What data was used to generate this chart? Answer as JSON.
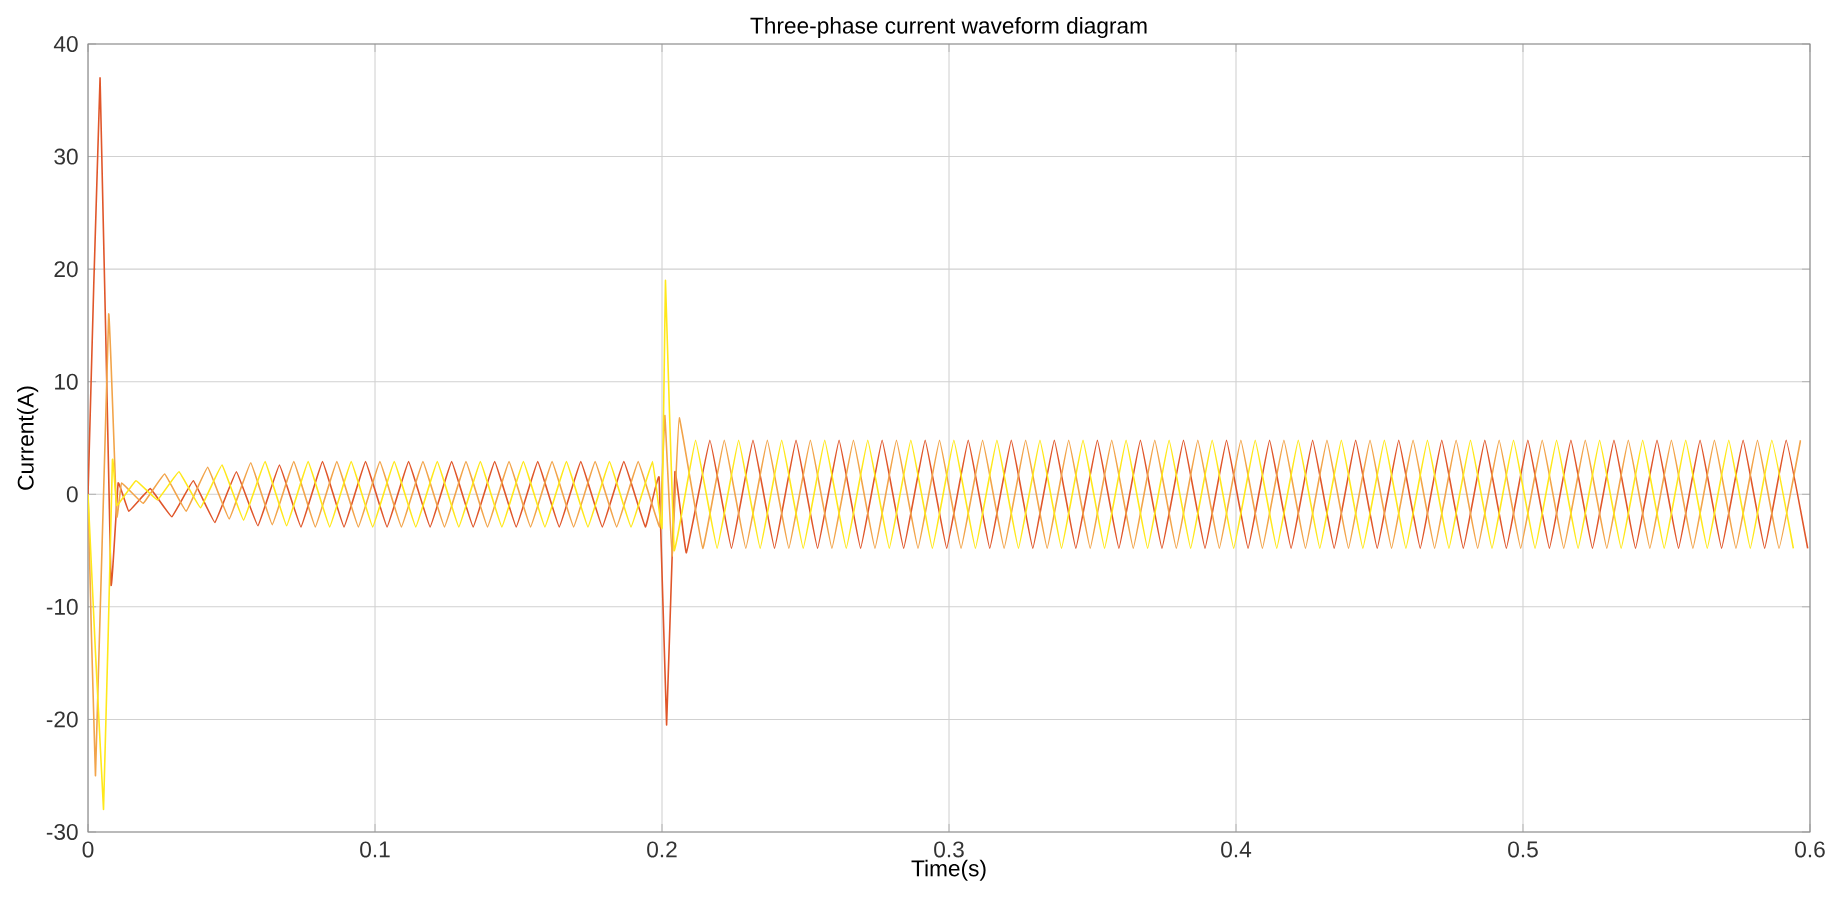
{
  "chart_data": {
    "type": "line",
    "title": "Three-phase current waveform diagram",
    "xlabel": "Time(s)",
    "ylabel": "Current(A)",
    "xlim": [
      0,
      0.6
    ],
    "ylim": [
      -30,
      40
    ],
    "xticks": [
      0,
      0.1,
      0.2,
      0.3,
      0.4,
      0.5,
      0.6
    ],
    "yticks": [
      -30,
      -20,
      -10,
      0,
      10,
      20,
      30,
      40
    ],
    "grid": true,
    "line_style": "solid",
    "series": [
      {
        "color": "#e0562a",
        "x": [
          0,
          0.0042,
          0.008,
          0.0105,
          0.0142,
          0.0217,
          0.0292,
          0.0367,
          0.0442,
          0.0517,
          0.0592,
          0.0667,
          0.0742,
          0.0817,
          0.0892,
          0.0967,
          0.1042,
          0.1117,
          0.1192,
          0.1267,
          0.1342,
          0.1417,
          0.1492,
          0.1567,
          0.1642,
          0.1717,
          0.1792,
          0.1867,
          0.1942,
          0.199,
          0.2016,
          0.2045,
          0.2085,
          0.2167,
          0.2242,
          0.2317,
          0.2392,
          0.2467,
          0.2542,
          0.2617,
          0.2692,
          0.2767,
          0.2842,
          0.2917,
          0.2992,
          0.3067,
          0.3142,
          0.3217,
          0.3292,
          0.3367,
          0.3442,
          0.3517,
          0.3592,
          0.3667,
          0.3742,
          0.3817,
          0.3892,
          0.3967,
          0.4042,
          0.4117,
          0.4192,
          0.4267,
          0.4342,
          0.4417,
          0.4492,
          0.4567,
          0.4642,
          0.4717,
          0.4792,
          0.4867,
          0.4942,
          0.5017,
          0.5092,
          0.5167,
          0.5242,
          0.5317,
          0.5392,
          0.5467,
          0.5542,
          0.5617,
          0.5692,
          0.5767,
          0.5842,
          0.5917,
          0.5992
        ],
        "values": [
          0,
          37,
          -8,
          1,
          -1.5,
          0.5,
          -2,
          1.2,
          -2.5,
          2,
          -2.8,
          2.6,
          -2.9,
          2.9,
          -2.9,
          2.9,
          -2.9,
          2.9,
          -2.9,
          2.9,
          -2.9,
          2.9,
          -2.9,
          2.9,
          -2.9,
          2.9,
          -2.9,
          2.9,
          -2.9,
          1.5,
          -20.5,
          2,
          -5.2,
          4.8,
          -4.8,
          4.8,
          -4.8,
          4.8,
          -4.8,
          4.8,
          -4.8,
          4.8,
          -4.8,
          4.8,
          -4.8,
          4.8,
          -4.8,
          4.8,
          -4.8,
          4.8,
          -4.8,
          4.8,
          -4.8,
          4.8,
          -4.8,
          4.8,
          -4.8,
          4.8,
          -4.8,
          4.8,
          -4.8,
          4.8,
          -4.8,
          4.8,
          -4.8,
          4.8,
          -4.8,
          4.8,
          -4.8,
          4.8,
          -4.8,
          4.8,
          -4.8,
          4.8,
          -4.8,
          4.8,
          -4.8,
          4.8,
          -4.8,
          4.8,
          -4.8,
          4.8,
          -4.8,
          4.8,
          -4.8
        ]
      },
      {
        "color": "#f2a44a",
        "x": [
          0,
          0.0026,
          0.0072,
          0.01,
          0.0117,
          0.0192,
          0.0267,
          0.0342,
          0.0417,
          0.0492,
          0.0567,
          0.0642,
          0.0717,
          0.0792,
          0.0867,
          0.0942,
          0.1017,
          0.1092,
          0.1167,
          0.1242,
          0.1317,
          0.1392,
          0.1467,
          0.1542,
          0.1617,
          0.1692,
          0.1767,
          0.1842,
          0.1917,
          0.1992,
          0.201,
          0.2035,
          0.206,
          0.2142,
          0.2217,
          0.2292,
          0.2367,
          0.2442,
          0.2517,
          0.2592,
          0.2667,
          0.2742,
          0.2817,
          0.2892,
          0.2967,
          0.3042,
          0.3117,
          0.3192,
          0.3267,
          0.3342,
          0.3417,
          0.3492,
          0.3567,
          0.3642,
          0.3717,
          0.3792,
          0.3867,
          0.3942,
          0.4017,
          0.4092,
          0.4167,
          0.4242,
          0.4317,
          0.4392,
          0.4467,
          0.4542,
          0.4617,
          0.4692,
          0.4767,
          0.4842,
          0.4917,
          0.4992,
          0.5067,
          0.5142,
          0.5217,
          0.5292,
          0.5367,
          0.5442,
          0.5517,
          0.5592,
          0.5667,
          0.5742,
          0.5817,
          0.5892,
          0.5967
        ],
        "values": [
          0,
          -25,
          16,
          -2,
          1,
          -0.8,
          1.8,
          -1.5,
          2.4,
          -2.2,
          2.8,
          -2.7,
          2.9,
          -2.9,
          2.9,
          -2.9,
          2.9,
          -2.9,
          2.9,
          -2.9,
          2.9,
          -2.9,
          2.9,
          -2.9,
          2.9,
          -2.9,
          2.9,
          -2.9,
          2.9,
          -2.9,
          7,
          -5.5,
          6.8,
          -4.8,
          4.8,
          -4.8,
          4.8,
          -4.8,
          4.8,
          -4.8,
          4.8,
          -4.8,
          4.8,
          -4.8,
          4.8,
          -4.8,
          4.8,
          -4.8,
          4.8,
          -4.8,
          4.8,
          -4.8,
          4.8,
          -4.8,
          4.8,
          -4.8,
          4.8,
          -4.8,
          4.8,
          -4.8,
          4.8,
          -4.8,
          4.8,
          -4.8,
          4.8,
          -4.8,
          4.8,
          -4.8,
          4.8,
          -4.8,
          4.8,
          -4.8,
          4.8,
          -4.8,
          4.8,
          -4.8,
          4.8,
          -4.8,
          4.8,
          -4.8,
          4.8,
          -4.8,
          4.8,
          -4.8,
          4.8
        ]
      },
      {
        "color": "#ffe81a",
        "x": [
          0,
          0.0054,
          0.0085,
          0.01,
          0.0167,
          0.0242,
          0.0317,
          0.0392,
          0.0467,
          0.0542,
          0.0617,
          0.0692,
          0.0767,
          0.0842,
          0.0917,
          0.0992,
          0.1067,
          0.1142,
          0.1217,
          0.1292,
          0.1367,
          0.1442,
          0.1517,
          0.1592,
          0.1667,
          0.1742,
          0.1817,
          0.1892,
          0.1967,
          0.2,
          0.2012,
          0.2042,
          0.2117,
          0.2192,
          0.2267,
          0.2342,
          0.2417,
          0.2492,
          0.2567,
          0.2642,
          0.2717,
          0.2792,
          0.2867,
          0.2942,
          0.3017,
          0.3092,
          0.3167,
          0.3242,
          0.3317,
          0.3392,
          0.3467,
          0.3542,
          0.3617,
          0.3692,
          0.3767,
          0.3842,
          0.3917,
          0.3992,
          0.4067,
          0.4142,
          0.4217,
          0.4292,
          0.4367,
          0.4442,
          0.4517,
          0.4592,
          0.4667,
          0.4742,
          0.4817,
          0.4892,
          0.4967,
          0.5042,
          0.5117,
          0.5192,
          0.5267,
          0.5342,
          0.5417,
          0.5492,
          0.5567,
          0.5642,
          0.5717,
          0.5792,
          0.5867,
          0.5942
        ],
        "values": [
          0,
          -28,
          3,
          -1,
          1.2,
          -0.5,
          2,
          -1.2,
          2.6,
          -2.3,
          2.9,
          -2.8,
          2.9,
          -2.9,
          2.9,
          -2.9,
          2.9,
          -2.9,
          2.9,
          -2.9,
          2.9,
          -2.9,
          2.9,
          -2.9,
          2.9,
          -2.9,
          2.9,
          -2.9,
          2.9,
          -3,
          19,
          -5,
          4.8,
          -4.8,
          4.8,
          -4.8,
          4.8,
          -4.8,
          4.8,
          -4.8,
          4.8,
          -4.8,
          4.8,
          -4.8,
          4.8,
          -4.8,
          4.8,
          -4.8,
          4.8,
          -4.8,
          4.8,
          -4.8,
          4.8,
          -4.8,
          4.8,
          -4.8,
          4.8,
          -4.8,
          4.8,
          -4.8,
          4.8,
          -4.8,
          4.8,
          -4.8,
          4.8,
          -4.8,
          4.8,
          -4.8,
          4.8,
          -4.8,
          4.8,
          -4.8,
          4.8,
          -4.8,
          4.8,
          -4.8,
          4.8,
          -4.8,
          4.8,
          -4.8,
          4.8,
          -4.8,
          4.8,
          -4.8
        ]
      }
    ]
  }
}
